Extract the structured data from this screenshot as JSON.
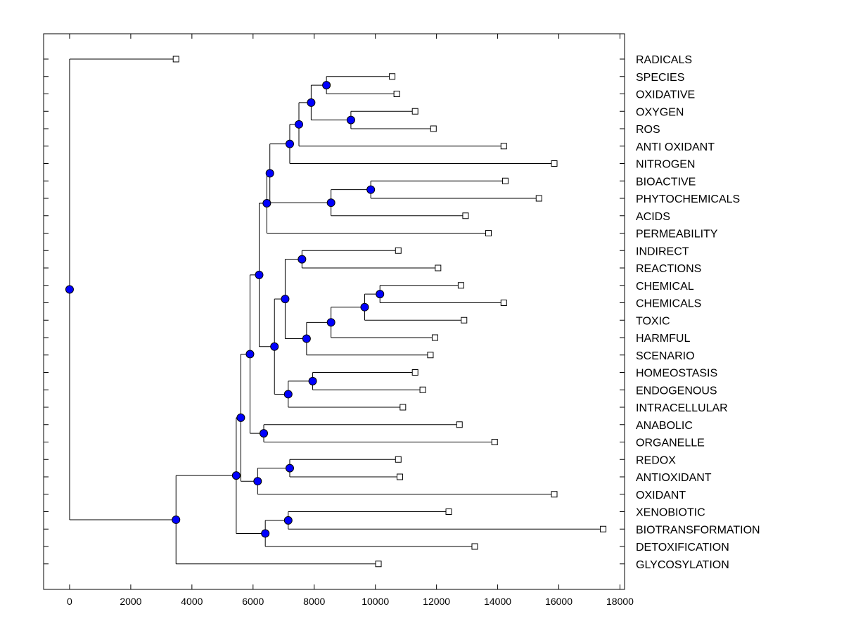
{
  "chart_data": {
    "type": "dendrogram",
    "title": "",
    "xlabel": "",
    "ylabel": "",
    "xlim": [
      -850,
      18150
    ],
    "xticks": [
      "0",
      "2000",
      "4000",
      "6000",
      "8000",
      "10000",
      "12000",
      "14000",
      "16000",
      "18000"
    ],
    "xtick_values": [
      0,
      2000,
      4000,
      6000,
      8000,
      10000,
      12000,
      14000,
      16000,
      18000
    ],
    "colors": {
      "node": "#0000ff",
      "leaf": "#ffffff",
      "line": "#000000"
    },
    "leaves": [
      {
        "label": "RADICALS",
        "value": 3480
      },
      {
        "label": "SPECIES",
        "value": 10550
      },
      {
        "label": "OXIDATIVE",
        "value": 10700
      },
      {
        "label": "OXYGEN",
        "value": 11300
      },
      {
        "label": "ROS",
        "value": 11900
      },
      {
        "label": "ANTI OXIDANT",
        "value": 14200
      },
      {
        "label": "NITROGEN",
        "value": 15850
      },
      {
        "label": "BIOACTIVE",
        "value": 14250
      },
      {
        "label": "PHYTOCHEMICALS",
        "value": 15350
      },
      {
        "label": "ACIDS",
        "value": 12950
      },
      {
        "label": "PERMEABILITY",
        "value": 13700
      },
      {
        "label": "INDIRECT",
        "value": 10750
      },
      {
        "label": "REACTIONS",
        "value": 12050
      },
      {
        "label": "CHEMICAL",
        "value": 12800
      },
      {
        "label": "CHEMICALS",
        "value": 14200
      },
      {
        "label": "TOXIC",
        "value": 12900
      },
      {
        "label": "HARMFUL",
        "value": 11950
      },
      {
        "label": "SCENARIO",
        "value": 11800
      },
      {
        "label": "HOMEOSTASIS",
        "value": 11300
      },
      {
        "label": "ENDOGENOUS",
        "value": 11550
      },
      {
        "label": "INTRACELLULAR",
        "value": 10900
      },
      {
        "label": "ANABOLIC",
        "value": 12750
      },
      {
        "label": "ORGANELLE",
        "value": 13900
      },
      {
        "label": "REDOX",
        "value": 10750
      },
      {
        "label": "ANTIOXIDANT",
        "value": 10800
      },
      {
        "label": "OXIDANT",
        "value": 15850
      },
      {
        "label": "XENOBIOTIC",
        "value": 12400
      },
      {
        "label": "BIOTRANSFORMATION",
        "value": 17450
      },
      {
        "label": "DETOXIFICATION",
        "value": 13250
      },
      {
        "label": "GLYCOSYLATION",
        "value": 10100
      }
    ],
    "merges": [
      {
        "id": "n1",
        "value": 8400,
        "children": [
          "SPECIES",
          "OXIDATIVE"
        ]
      },
      {
        "id": "n2",
        "value": 9200,
        "children": [
          "OXYGEN",
          "ROS"
        ]
      },
      {
        "id": "n3",
        "value": 7900,
        "children": [
          "n1",
          "n2"
        ]
      },
      {
        "id": "n4",
        "value": 7500,
        "children": [
          "n3",
          "ANTI OXIDANT"
        ]
      },
      {
        "id": "n5",
        "value": 7200,
        "children": [
          "n4",
          "NITROGEN"
        ]
      },
      {
        "id": "n6",
        "value": 9850,
        "children": [
          "BIOACTIVE",
          "PHYTOCHEMICALS"
        ]
      },
      {
        "id": "n7",
        "value": 8550,
        "children": [
          "n6",
          "ACIDS"
        ]
      },
      {
        "id": "n8",
        "value": 6550,
        "children": [
          "n5",
          "n7"
        ]
      },
      {
        "id": "n9",
        "value": 6450,
        "children": [
          "n8",
          "PERMEABILITY"
        ]
      },
      {
        "id": "n10",
        "value": 7600,
        "children": [
          "INDIRECT",
          "REACTIONS"
        ]
      },
      {
        "id": "n11",
        "value": 10150,
        "children": [
          "CHEMICAL",
          "CHEMICALS"
        ]
      },
      {
        "id": "n12",
        "value": 9650,
        "children": [
          "n11",
          "TOXIC"
        ]
      },
      {
        "id": "n13",
        "value": 8550,
        "children": [
          "n12",
          "HARMFUL"
        ]
      },
      {
        "id": "n14",
        "value": 7750,
        "children": [
          "n13",
          "SCENARIO"
        ]
      },
      {
        "id": "n15",
        "value": 7050,
        "children": [
          "n10",
          "n14"
        ]
      },
      {
        "id": "n16",
        "value": 7950,
        "children": [
          "HOMEOSTASIS",
          "ENDOGENOUS"
        ]
      },
      {
        "id": "n17",
        "value": 7150,
        "children": [
          "n16",
          "INTRACELLULAR"
        ]
      },
      {
        "id": "n18",
        "value": 6700,
        "children": [
          "n15",
          "n17"
        ]
      },
      {
        "id": "n19",
        "value": 6200,
        "children": [
          "n9",
          "n18"
        ]
      },
      {
        "id": "n20",
        "value": 6350,
        "children": [
          "ANABOLIC",
          "ORGANELLE"
        ]
      },
      {
        "id": "n21",
        "value": 5900,
        "children": [
          "n19",
          "n20"
        ]
      },
      {
        "id": "n22",
        "value": 7200,
        "children": [
          "REDOX",
          "ANTIOXIDANT"
        ]
      },
      {
        "id": "n23",
        "value": 6150,
        "children": [
          "n22",
          "OXIDANT"
        ]
      },
      {
        "id": "n24",
        "value": 5600,
        "children": [
          "n21",
          "n23"
        ]
      },
      {
        "id": "n25",
        "value": 7150,
        "children": [
          "XENOBIOTIC",
          "BIOTRANSFORMATION"
        ]
      },
      {
        "id": "n26",
        "value": 6400,
        "children": [
          "n25",
          "DETOXIFICATION"
        ]
      },
      {
        "id": "n27",
        "value": 5450,
        "children": [
          "n24",
          "n26"
        ]
      },
      {
        "id": "n28",
        "value": 3480,
        "children": [
          "n27",
          "GLYCOSYLATION"
        ]
      },
      {
        "id": "n29",
        "value": 0,
        "children": [
          "RADICALS",
          "n28"
        ]
      }
    ]
  }
}
